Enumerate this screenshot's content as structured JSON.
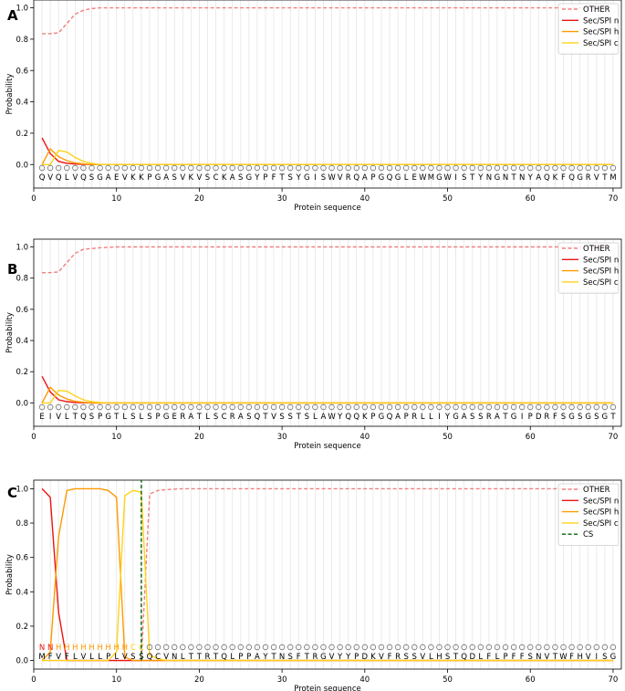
{
  "chart_data": [
    {
      "panel_label": "A",
      "type": "line",
      "xlabel": "Protein sequence",
      "ylabel": "Probability",
      "xlim": [
        0,
        71
      ],
      "ylim": [
        -0.15,
        1.05
      ],
      "x_ticks": [
        0,
        10,
        20,
        30,
        40,
        50,
        60,
        70
      ],
      "y_ticks": [
        0.0,
        0.2,
        0.4,
        0.6,
        0.8,
        1.0
      ],
      "grid": "vertical",
      "legend_position": "top-right",
      "sequence": "QVQLVQSGAEVKKPGASVKVSCKASGYPFTSYGISWVRQAPGQGLEWMGWISTYNGNTNYAQKFQGRVTM",
      "predicted_labels": "OOOOOOOOOOOOOOOOOOOOOOOOOOOOOOOOOOOOOOOOOOOOOOOOOOOOOOOOOOOOOOOOOOOOOO",
      "series": [
        {
          "name": "OTHER",
          "color": "#f08080",
          "style": "dashed",
          "x": [
            1,
            2,
            3,
            4,
            5,
            6,
            7,
            8,
            70
          ],
          "values": [
            0.835,
            0.835,
            0.84,
            0.9,
            0.96,
            0.985,
            0.995,
            1.0,
            1.0
          ]
        },
        {
          "name": "Sec/SPI n",
          "color": "#ee1111",
          "style": "solid",
          "x": [
            1,
            2,
            3,
            4,
            5,
            6,
            7,
            70
          ],
          "values": [
            0.17,
            0.07,
            0.02,
            0.008,
            0.003,
            0.001,
            0.0,
            0.0
          ]
        },
        {
          "name": "Sec/SPI h",
          "color": "#ff9900",
          "style": "solid",
          "x": [
            1,
            2,
            3,
            4,
            5,
            6,
            7,
            70
          ],
          "values": [
            0.0,
            0.1,
            0.05,
            0.025,
            0.01,
            0.004,
            0.0,
            0.0
          ]
        },
        {
          "name": "Sec/SPI c",
          "color": "#ffd21a",
          "style": "solid",
          "x": [
            1,
            2,
            3,
            4,
            5,
            6,
            7,
            8,
            70
          ],
          "values": [
            0.0,
            0.0,
            0.09,
            0.08,
            0.045,
            0.02,
            0.008,
            0.0,
            0.0
          ]
        }
      ]
    },
    {
      "panel_label": "B",
      "type": "line",
      "xlabel": "Protein sequence",
      "ylabel": "Probability",
      "xlim": [
        0,
        71
      ],
      "ylim": [
        -0.15,
        1.05
      ],
      "x_ticks": [
        0,
        10,
        20,
        30,
        40,
        50,
        60,
        70
      ],
      "y_ticks": [
        0.0,
        0.2,
        0.4,
        0.6,
        0.8,
        1.0
      ],
      "grid": "vertical",
      "legend_position": "top-right",
      "sequence": "EIVLTQSPGTLSLSPGERATLSCRASQTVSSTSLAWYQQKPGQAPRLLIYGASSRATGIPDRFSGSGSGT",
      "predicted_labels": "OOOOOOOOOOOOOOOOOOOOOOOOOOOOOOOOOOOOOOOOOOOOOOOOOOOOOOOOOOOOOOOOOOOOOO",
      "series": [
        {
          "name": "OTHER",
          "color": "#f08080",
          "style": "dashed",
          "x": [
            1,
            2,
            3,
            4,
            5,
            6,
            7,
            8,
            10,
            70
          ],
          "values": [
            0.835,
            0.835,
            0.84,
            0.9,
            0.96,
            0.985,
            0.99,
            0.995,
            1.0,
            1.0
          ]
        },
        {
          "name": "Sec/SPI n",
          "color": "#ee1111",
          "style": "solid",
          "x": [
            1,
            2,
            3,
            4,
            5,
            6,
            7,
            70
          ],
          "values": [
            0.17,
            0.07,
            0.02,
            0.008,
            0.003,
            0.001,
            0.0,
            0.0
          ]
        },
        {
          "name": "Sec/SPI h",
          "color": "#ff9900",
          "style": "solid",
          "x": [
            1,
            2,
            3,
            4,
            5,
            6,
            7,
            70
          ],
          "values": [
            0.0,
            0.1,
            0.05,
            0.025,
            0.01,
            0.004,
            0.0,
            0.0
          ]
        },
        {
          "name": "Sec/SPI c",
          "color": "#ffd21a",
          "style": "solid",
          "x": [
            1,
            2,
            3,
            4,
            5,
            6,
            7,
            8,
            9,
            70
          ],
          "values": [
            0.0,
            0.0,
            0.08,
            0.075,
            0.045,
            0.02,
            0.008,
            0.003,
            0.0,
            0.0
          ]
        }
      ]
    },
    {
      "panel_label": "C",
      "type": "line",
      "xlabel": "Protein sequence",
      "ylabel": "Probability",
      "xlim": [
        0,
        71
      ],
      "ylim": [
        -0.05,
        1.05
      ],
      "x_ticks": [
        0,
        10,
        20,
        30,
        40,
        50,
        60,
        70
      ],
      "y_ticks": [
        0.0,
        0.2,
        0.4,
        0.6,
        0.8,
        1.0
      ],
      "grid": "vertical",
      "legend_position": "top-right",
      "sequence": "MFVFLVLLPLVSSQCVNLTTRTQLPPAYTNSFTRGVYYPDKVFRSSVLHSTQDLFLPFFSNVTWFHVISG",
      "predicted_labels": "NNHHHHHHHHHCCOOOOOOOOOOOOOOOOOOOOOOOOOOOOOOOOOOOOOOOOOOOOOOOOOOOOOOOOO",
      "label_colors": {
        "N": "#ee1111",
        "H": "#ff9900",
        "C": "#ffd21a",
        "O": "#707070"
      },
      "cleavage_site": 13,
      "series": [
        {
          "name": "OTHER",
          "color": "#f08080",
          "style": "dashed",
          "x": [
            1,
            2,
            3,
            4,
            5,
            6,
            7,
            8,
            9,
            10,
            11,
            12,
            13,
            14,
            15,
            16,
            18,
            20,
            70
          ],
          "values": [
            0.0,
            0.0,
            0.0,
            0.0,
            0.0,
            0.0,
            0.0,
            0.0,
            0.0,
            0.0,
            0.0,
            0.0,
            0.0,
            0.97,
            0.99,
            0.995,
            1.0,
            1.0,
            1.0
          ]
        },
        {
          "name": "Sec/SPI n",
          "color": "#ee1111",
          "style": "solid",
          "x": [
            1,
            2,
            3,
            4,
            5,
            70
          ],
          "values": [
            1.0,
            0.95,
            0.28,
            0.0,
            0.0,
            0.0
          ]
        },
        {
          "name": "Sec/SPI h",
          "color": "#ff9900",
          "style": "solid",
          "x": [
            1,
            2,
            3,
            4,
            5,
            6,
            7,
            8,
            9,
            10,
            11,
            12,
            13,
            70
          ],
          "values": [
            0.0,
            0.05,
            0.72,
            0.99,
            1.0,
            1.0,
            1.0,
            1.0,
            0.99,
            0.95,
            0.02,
            0.0,
            0.0,
            0.0
          ]
        },
        {
          "name": "Sec/SPI c",
          "color": "#ffd21a",
          "style": "solid",
          "x": [
            1,
            2,
            3,
            4,
            5,
            6,
            7,
            8,
            9,
            10,
            11,
            12,
            13,
            14,
            15,
            16,
            70
          ],
          "values": [
            0.0,
            0.0,
            0.0,
            0.0,
            0.0,
            0.0,
            0.0,
            0.0,
            0.0,
            0.05,
            0.96,
            0.99,
            0.98,
            0.03,
            0.01,
            0.0,
            0.0
          ]
        },
        {
          "name": "CS",
          "color": "#006400",
          "style": "dashed",
          "x": [
            13,
            13
          ],
          "values": [
            0.0,
            1.05
          ]
        }
      ]
    }
  ]
}
